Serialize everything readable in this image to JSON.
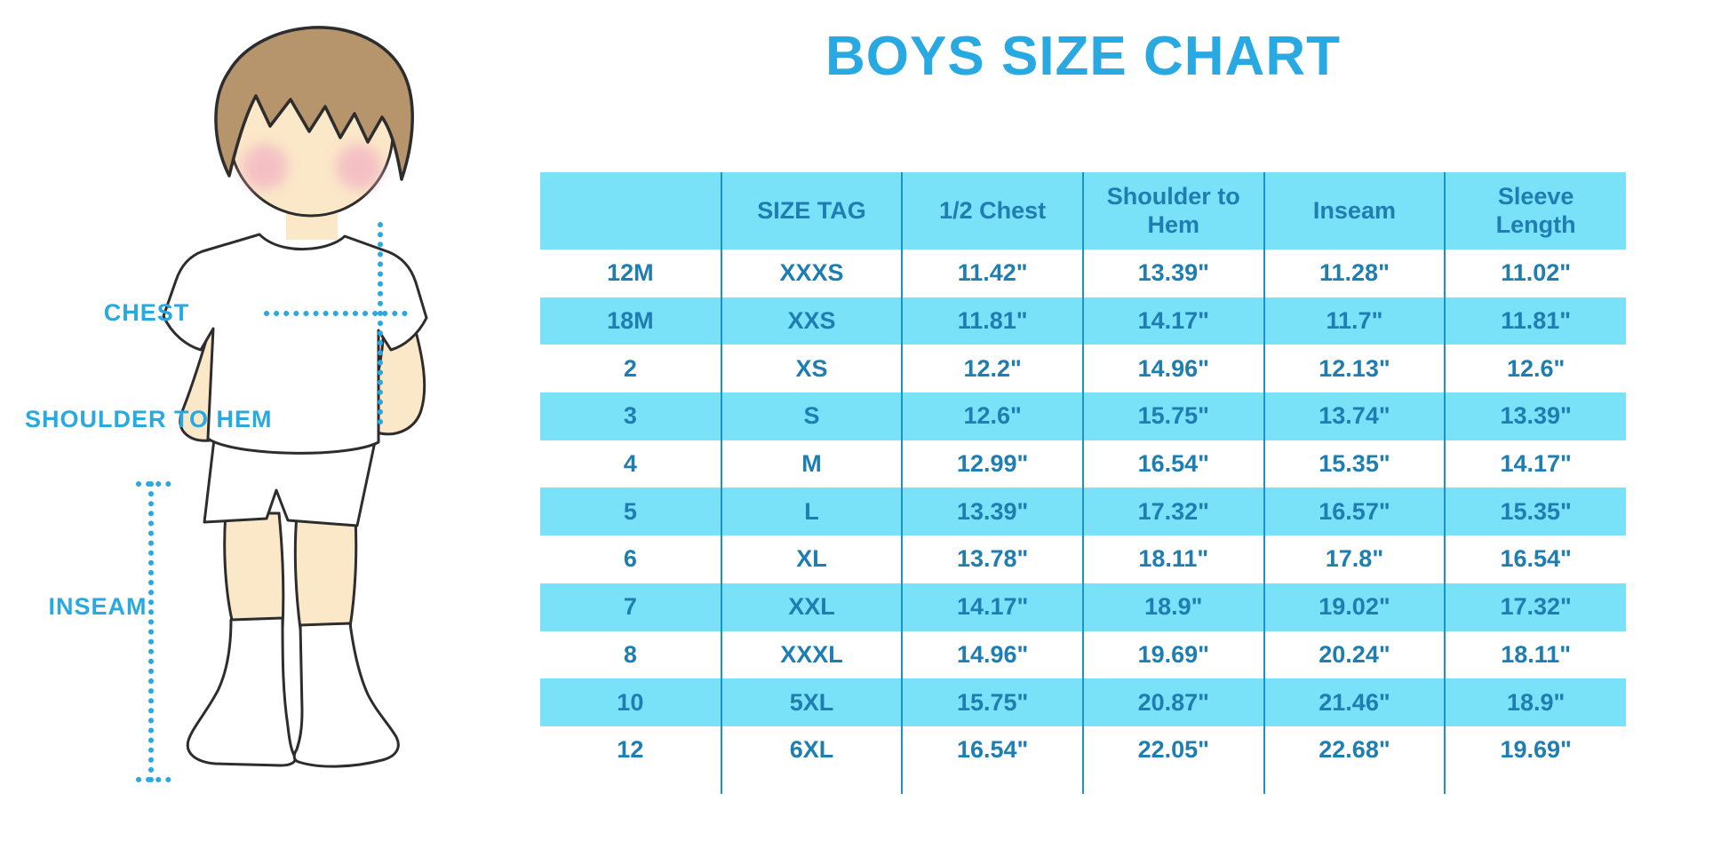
{
  "page": {
    "background": "#ffffff",
    "type_label": "boys clothing size chart infographic"
  },
  "diagram": {
    "labels": {
      "chest": "CHEST",
      "shoulder_to_hem": "SHOULDER TO HEM",
      "inseam": "INSEAM"
    },
    "figure": "boy-in-white-tshirt-shorts-and-knee-socks",
    "measure_line_style": "dotted"
  },
  "colors": {
    "accent_blue": "#29a9e1",
    "table_stripe_bg": "#79e1f8",
    "table_text": "#1e7eb2",
    "grid_line": "#1b93c4",
    "skin": "#fbe8c8",
    "hair": "#b6946c",
    "blush": "#f3b7c4",
    "outline": "#2d2d2d"
  },
  "chart_data": {
    "type": "table",
    "title": "BOYS SIZE CHART",
    "columns": [
      "",
      "SIZE TAG",
      "1/2 Chest",
      "Shoulder to Hem",
      "Inseam",
      "Sleeve Length"
    ],
    "rows": [
      [
        "12M",
        "XXXS",
        "11.42\"",
        "13.39\"",
        "11.28\"",
        "11.02\""
      ],
      [
        "18M",
        "XXS",
        "11.81\"",
        "14.17\"",
        "11.7\"",
        "11.81\""
      ],
      [
        "2",
        "XS",
        "12.2\"",
        "14.96\"",
        "12.13\"",
        "12.6\""
      ],
      [
        "3",
        "S",
        "12.6\"",
        "15.75\"",
        "13.74\"",
        "13.39\""
      ],
      [
        "4",
        "M",
        "12.99\"",
        "16.54\"",
        "15.35\"",
        "14.17\""
      ],
      [
        "5",
        "L",
        "13.39\"",
        "17.32\"",
        "16.57\"",
        "15.35\""
      ],
      [
        "6",
        "XL",
        "13.78\"",
        "18.11\"",
        "17.8\"",
        "16.54\""
      ],
      [
        "7",
        "XXL",
        "14.17\"",
        "18.9\"",
        "19.02\"",
        "17.32\""
      ],
      [
        "8",
        "XXXL",
        "14.96\"",
        "19.69\"",
        "20.24\"",
        "18.11\""
      ],
      [
        "10",
        "5XL",
        "15.75\"",
        "20.87\"",
        "21.46\"",
        "18.9\""
      ],
      [
        "12",
        "6XL",
        "16.54\"",
        "22.05\"",
        "22.68\"",
        "19.69\""
      ]
    ],
    "units": "inches",
    "row_striping": [
      "white",
      "#79e1f8"
    ],
    "legend_position": "none",
    "grid": "vertical-separators-only"
  }
}
